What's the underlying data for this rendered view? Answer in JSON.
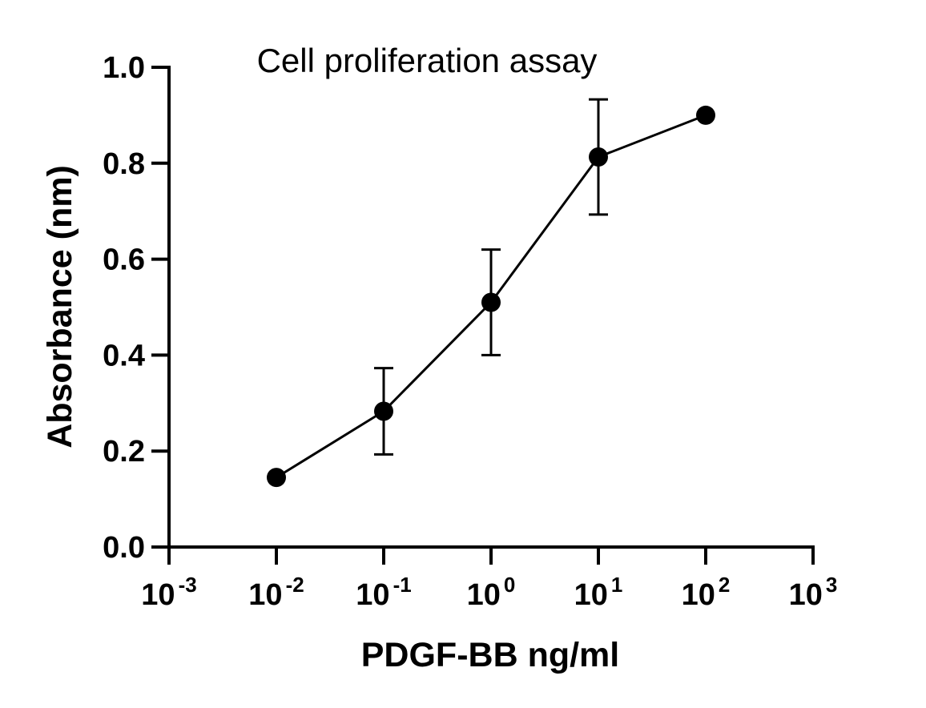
{
  "chart_data": {
    "type": "line",
    "title": "Cell proliferation assay",
    "xlabel": "PDGF-BB ng/ml",
    "ylabel": "Absorbance (nm)",
    "xscale": "log",
    "xlim": [
      0.001,
      1000
    ],
    "ylim": [
      0.0,
      1.0
    ],
    "grid": false,
    "x_ticks": [
      {
        "base": "10",
        "exp": "-3",
        "value": 0.001
      },
      {
        "base": "10",
        "exp": "-2",
        "value": 0.01
      },
      {
        "base": "10",
        "exp": "-1",
        "value": 0.1
      },
      {
        "base": "10",
        "exp": "0",
        "value": 1
      },
      {
        "base": "10",
        "exp": "1",
        "value": 10
      },
      {
        "base": "10",
        "exp": "2",
        "value": 100
      },
      {
        "base": "10",
        "exp": "3",
        "value": 1000
      }
    ],
    "y_ticks": [
      "0.0",
      "0.2",
      "0.4",
      "0.6",
      "0.8",
      "1.0"
    ],
    "series": [
      {
        "x": [
          0.01,
          0.1,
          1,
          10,
          100
        ],
        "y": [
          0.145,
          0.283,
          0.51,
          0.813,
          0.9
        ],
        "error": [
          null,
          0.09,
          0.11,
          0.12,
          null
        ],
        "color": "#000000",
        "marker": "circle"
      }
    ]
  }
}
